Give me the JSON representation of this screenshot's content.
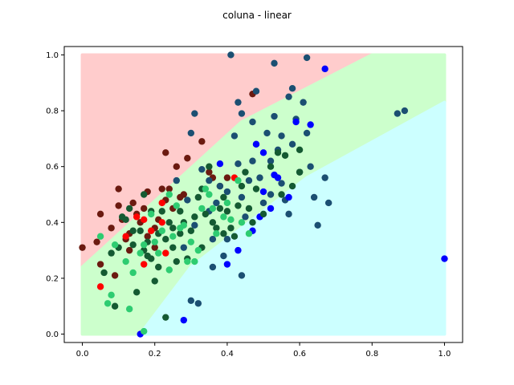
{
  "chart_data": {
    "type": "scatter",
    "title": "coluna - linear",
    "xlabel": "",
    "ylabel": "",
    "xlim": [
      -0.05,
      1.05
    ],
    "ylim": [
      -0.03,
      1.03
    ],
    "grid": false,
    "x_ticks": [
      "0.0",
      "0.2",
      "0.4",
      "0.6",
      "0.8",
      "1.0"
    ],
    "y_ticks": [
      "0.0",
      "0.2",
      "0.4",
      "0.6",
      "0.8",
      "1.0"
    ],
    "decision_regions": [
      {
        "region": "upper-left",
        "color": "#ffcccc",
        "polygon": [
          [
            0,
            0.24
          ],
          [
            0,
            1.0
          ],
          [
            0.8,
            1.0
          ],
          [
            0.44,
            0.76
          ],
          [
            0,
            0.24
          ]
        ]
      },
      {
        "region": "middle-band",
        "color": "#ccffcc",
        "polygon": [
          [
            0,
            0.0
          ],
          [
            0,
            0.24
          ],
          [
            0.44,
            0.76
          ],
          [
            0.8,
            1.0
          ],
          [
            1.0,
            1.0
          ],
          [
            1.0,
            0.83
          ],
          [
            0.62,
            0.56
          ],
          [
            0.3,
            0.24
          ],
          [
            0.16,
            0.0
          ]
        ]
      },
      {
        "region": "lower-right",
        "color": "#ccffff",
        "polygon": [
          [
            0.16,
            0.0
          ],
          [
            0.3,
            0.24
          ],
          [
            0.62,
            0.56
          ],
          [
            1.0,
            0.83
          ],
          [
            1.0,
            0.0
          ]
        ]
      }
    ],
    "series": [
      {
        "color": "#6b1a10",
        "points": [
          [
            0.0,
            0.31
          ],
          [
            0.04,
            0.33
          ],
          [
            0.05,
            0.43
          ],
          [
            0.05,
            0.25
          ],
          [
            0.08,
            0.38
          ],
          [
            0.1,
            0.52
          ],
          [
            0.1,
            0.46
          ],
          [
            0.11,
            0.41
          ],
          [
            0.13,
            0.36
          ],
          [
            0.14,
            0.47
          ],
          [
            0.15,
            0.43
          ],
          [
            0.16,
            0.4
          ],
          [
            0.17,
            0.45
          ],
          [
            0.18,
            0.51
          ],
          [
            0.2,
            0.38
          ],
          [
            0.21,
            0.41
          ],
          [
            0.22,
            0.52
          ],
          [
            0.23,
            0.65
          ],
          [
            0.23,
            0.48
          ],
          [
            0.24,
            0.52
          ],
          [
            0.25,
            0.45
          ],
          [
            0.26,
            0.6
          ],
          [
            0.27,
            0.49
          ],
          [
            0.28,
            0.5
          ],
          [
            0.29,
            0.63
          ],
          [
            0.33,
            0.69
          ],
          [
            0.35,
            0.58
          ],
          [
            0.36,
            0.56
          ],
          [
            0.38,
            0.53
          ],
          [
            0.4,
            0.56
          ],
          [
            0.47,
            0.86
          ],
          [
            0.13,
            0.3
          ],
          [
            0.12,
            0.34
          ],
          [
            0.09,
            0.21
          ],
          [
            0.18,
            0.35
          ],
          [
            0.2,
            0.31
          ]
        ]
      },
      {
        "color": "#ff0000",
        "points": [
          [
            0.05,
            0.17
          ],
          [
            0.12,
            0.35
          ],
          [
            0.15,
            0.42
          ],
          [
            0.17,
            0.41
          ],
          [
            0.17,
            0.25
          ],
          [
            0.19,
            0.37
          ],
          [
            0.22,
            0.4
          ],
          [
            0.23,
            0.29
          ],
          [
            0.22,
            0.47
          ],
          [
            0.42,
            0.56
          ]
        ]
      },
      {
        "color": "#1b4f72",
        "points": [
          [
            0.26,
            0.55
          ],
          [
            0.29,
            0.48
          ],
          [
            0.3,
            0.72
          ],
          [
            0.3,
            0.12
          ],
          [
            0.31,
            0.79
          ],
          [
            0.32,
            0.11
          ],
          [
            0.33,
            0.59
          ],
          [
            0.35,
            0.55
          ],
          [
            0.36,
            0.34
          ],
          [
            0.36,
            0.24
          ],
          [
            0.37,
            0.47
          ],
          [
            0.38,
            0.53
          ],
          [
            0.39,
            0.28
          ],
          [
            0.4,
            0.51
          ],
          [
            0.4,
            0.34
          ],
          [
            0.41,
            1.0
          ],
          [
            0.42,
            0.71
          ],
          [
            0.43,
            0.83
          ],
          [
            0.43,
            0.61
          ],
          [
            0.44,
            0.79
          ],
          [
            0.44,
            0.49
          ],
          [
            0.44,
            0.21
          ],
          [
            0.46,
            0.55
          ],
          [
            0.47,
            0.76
          ],
          [
            0.47,
            0.62
          ],
          [
            0.48,
            0.87
          ],
          [
            0.48,
            0.68
          ],
          [
            0.49,
            0.56
          ],
          [
            0.5,
            0.47
          ],
          [
            0.51,
            0.72
          ],
          [
            0.52,
            0.62
          ],
          [
            0.53,
            0.97
          ],
          [
            0.53,
            0.78
          ],
          [
            0.54,
            0.66
          ],
          [
            0.55,
            0.54
          ],
          [
            0.56,
            0.48
          ],
          [
            0.57,
            0.43
          ],
          [
            0.57,
            0.85
          ],
          [
            0.58,
            0.88
          ],
          [
            0.59,
            0.77
          ],
          [
            0.6,
            0.58
          ],
          [
            0.61,
            0.83
          ],
          [
            0.62,
            0.99
          ],
          [
            0.62,
            0.72
          ],
          [
            0.63,
            0.6
          ],
          [
            0.64,
            0.49
          ],
          [
            0.65,
            0.39
          ],
          [
            0.67,
            0.56
          ],
          [
            0.68,
            0.47
          ],
          [
            0.87,
            0.79
          ],
          [
            0.89,
            0.8
          ],
          [
            0.28,
            0.31
          ],
          [
            0.31,
            0.39
          ],
          [
            0.35,
            0.44
          ],
          [
            0.45,
            0.42
          ],
          [
            0.52,
            0.5
          ],
          [
            0.55,
            0.71
          ],
          [
            0.58,
            0.68
          ]
        ]
      },
      {
        "color": "#0000ff",
        "points": [
          [
            0.16,
            0.0
          ],
          [
            0.28,
            0.05
          ],
          [
            0.38,
            0.61
          ],
          [
            0.4,
            0.25
          ],
          [
            0.43,
            0.3
          ],
          [
            0.47,
            0.37
          ],
          [
            0.48,
            0.68
          ],
          [
            0.49,
            0.42
          ],
          [
            0.5,
            0.51
          ],
          [
            0.5,
            0.65
          ],
          [
            0.52,
            0.45
          ],
          [
            0.54,
            0.56
          ],
          [
            0.57,
            0.49
          ],
          [
            0.59,
            0.76
          ],
          [
            0.63,
            0.75
          ],
          [
            0.67,
            0.95
          ],
          [
            1.0,
            0.27
          ],
          [
            0.53,
            0.57
          ]
        ]
      },
      {
        "color": "#145a32",
        "points": [
          [
            0.06,
            0.22
          ],
          [
            0.08,
            0.29
          ],
          [
            0.09,
            0.1
          ],
          [
            0.1,
            0.31
          ],
          [
            0.11,
            0.42
          ],
          [
            0.12,
            0.41
          ],
          [
            0.13,
            0.45
          ],
          [
            0.14,
            0.37
          ],
          [
            0.15,
            0.15
          ],
          [
            0.16,
            0.37
          ],
          [
            0.17,
            0.5
          ],
          [
            0.17,
            0.3
          ],
          [
            0.18,
            0.33
          ],
          [
            0.19,
            0.44
          ],
          [
            0.19,
            0.27
          ],
          [
            0.2,
            0.19
          ],
          [
            0.21,
            0.36
          ],
          [
            0.21,
            0.24
          ],
          [
            0.22,
            0.44
          ],
          [
            0.23,
            0.34
          ],
          [
            0.23,
            0.06
          ],
          [
            0.24,
            0.4
          ],
          [
            0.25,
            0.31
          ],
          [
            0.26,
            0.26
          ],
          [
            0.27,
            0.44
          ],
          [
            0.27,
            0.36
          ],
          [
            0.28,
            0.4
          ],
          [
            0.29,
            0.27
          ],
          [
            0.3,
            0.37
          ],
          [
            0.31,
            0.42
          ],
          [
            0.32,
            0.49
          ],
          [
            0.33,
            0.31
          ],
          [
            0.34,
            0.43
          ],
          [
            0.35,
            0.6
          ],
          [
            0.36,
            0.4
          ],
          [
            0.37,
            0.38
          ],
          [
            0.38,
            0.45
          ],
          [
            0.39,
            0.49
          ],
          [
            0.4,
            0.44
          ],
          [
            0.41,
            0.38
          ],
          [
            0.42,
            0.35
          ],
          [
            0.43,
            0.46
          ],
          [
            0.44,
            0.53
          ],
          [
            0.45,
            0.58
          ],
          [
            0.46,
            0.45
          ],
          [
            0.47,
            0.4
          ],
          [
            0.48,
            0.52
          ],
          [
            0.5,
            0.43
          ],
          [
            0.52,
            0.6
          ],
          [
            0.54,
            0.65
          ],
          [
            0.55,
            0.5
          ],
          [
            0.56,
            0.64
          ],
          [
            0.58,
            0.53
          ],
          [
            0.6,
            0.58
          ],
          [
            0.6,
            0.66
          ],
          [
            0.14,
            0.32
          ],
          [
            0.18,
            0.28
          ],
          [
            0.25,
            0.38
          ],
          [
            0.33,
            0.52
          ],
          [
            0.39,
            0.36
          ]
        ]
      },
      {
        "color": "#2ecc71",
        "points": [
          [
            0.05,
            0.35
          ],
          [
            0.07,
            0.11
          ],
          [
            0.08,
            0.14
          ],
          [
            0.09,
            0.32
          ],
          [
            0.12,
            0.26
          ],
          [
            0.13,
            0.09
          ],
          [
            0.14,
            0.22
          ],
          [
            0.16,
            0.29
          ],
          [
            0.17,
            0.32
          ],
          [
            0.19,
            0.43
          ],
          [
            0.2,
            0.33
          ],
          [
            0.21,
            0.29
          ],
          [
            0.22,
            0.37
          ],
          [
            0.24,
            0.23
          ],
          [
            0.25,
            0.35
          ],
          [
            0.26,
            0.46
          ],
          [
            0.27,
            0.38
          ],
          [
            0.29,
            0.26
          ],
          [
            0.3,
            0.33
          ],
          [
            0.32,
            0.3
          ],
          [
            0.33,
            0.45
          ],
          [
            0.34,
            0.52
          ],
          [
            0.36,
            0.45
          ],
          [
            0.37,
            0.36
          ],
          [
            0.39,
            0.42
          ],
          [
            0.4,
            0.47
          ],
          [
            0.41,
            0.41
          ],
          [
            0.43,
            0.55
          ],
          [
            0.44,
            0.4
          ],
          [
            0.46,
            0.36
          ],
          [
            0.24,
            0.5
          ],
          [
            0.31,
            0.26
          ],
          [
            0.35,
            0.5
          ],
          [
            0.17,
            0.01
          ],
          [
            0.28,
            0.39
          ]
        ]
      }
    ]
  }
}
